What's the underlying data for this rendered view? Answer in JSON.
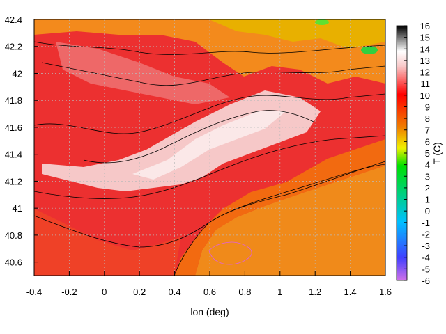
{
  "chart_data": {
    "type": "heatmap",
    "title": "",
    "xlabel": "lon (deg)",
    "ylabel": "",
    "colorbar_label": "T (C)",
    "xlim": [
      -0.4,
      1.6
    ],
    "ylim": [
      40.5,
      42.4
    ],
    "x_ticks": [
      "-0.4",
      "-0.2",
      "0",
      "0.2",
      "0.4",
      "0.6",
      "0.8",
      "1",
      "1.2",
      "1.4",
      "1.6"
    ],
    "y_ticks": [
      "40.6",
      "40.8",
      "41",
      "41.2",
      "41.4",
      "41.6",
      "41.8",
      "42",
      "42.2",
      "42.4"
    ],
    "colorbar_range": [
      -6,
      16
    ],
    "colorbar_ticks": [
      "16",
      "15",
      "14",
      "13",
      "12",
      "11",
      "10",
      "9",
      "8",
      "7",
      "6",
      "5",
      "4",
      "3",
      "2",
      "1",
      "0",
      "-1",
      "-2",
      "-3",
      "-4",
      "-5",
      "-6"
    ],
    "grid": true,
    "contours": true,
    "field_description": "Temperature field over land with contour lines; warm interior (~12-14 C), warmer sea ~8-9 C in the south-east, cooler mountainous north (~6-10 C).",
    "colors": {
      "sea": "#f08a1a",
      "interior": "#f6d2d2",
      "mountain": "#e8b000",
      "colormap": [
        "#d070e8",
        "#4040ff",
        "#00c0ff",
        "#00e000",
        "#f0f000",
        "#f08000",
        "#ff0000",
        "#f8c8c8",
        "#ffffff",
        "#000000"
      ]
    }
  }
}
